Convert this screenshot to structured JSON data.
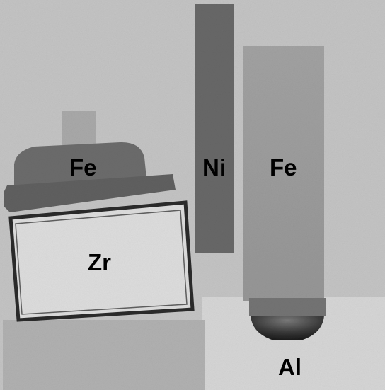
{
  "image": {
    "kind": "x-ray radiograph",
    "labels": {
      "fe_left": "Fe",
      "zr": "Zr",
      "ni": "Ni",
      "fe_right": "Fe",
      "al": "Al"
    },
    "colors": {
      "background": "#c4c4c4",
      "lower_background": "#d6d6d6",
      "block_left": "#b1b1b1",
      "fe_left_cap": "#6c6c6c",
      "fe_left_flange": "#606060",
      "fe_left_stub": "#a9a9a9",
      "zr_body": "#dddddd",
      "zr_edge": "#2a2a2a",
      "ni_rod": "#686868",
      "fe_right_rod": "#9b9b9b",
      "al_band": "#747474",
      "al_tip": "#2f2f2f"
    }
  }
}
